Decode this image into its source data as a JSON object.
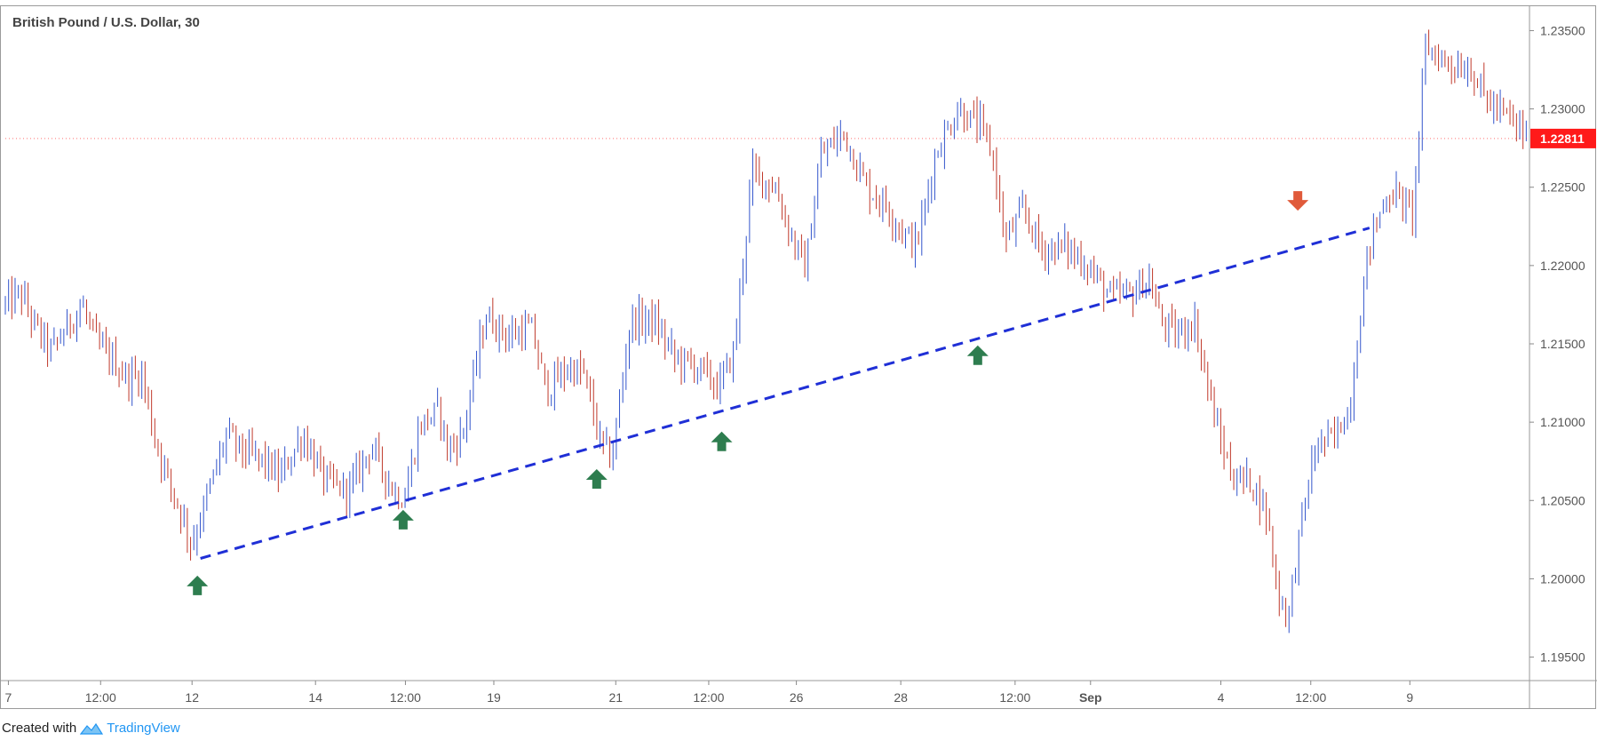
{
  "window": {
    "title": "British Pound / U.S. Dollar, 30"
  },
  "footer": {
    "created_with": "Created with",
    "brand": "TradingView"
  },
  "colors": {
    "up_candle": "#3355cc",
    "down_candle": "#c0392b",
    "trendline": "#1f2fd6",
    "up_arrow": "#2e7d4f",
    "down_arrow": "#e05a3a",
    "price_badge": "#ff1a1a",
    "grid_border": "#9a9a9a"
  },
  "chart_data": {
    "type": "candlestick",
    "symbol": "British Pound / U.S. Dollar",
    "timeframe": "30",
    "current_price": "1.22811",
    "ylim": [
      1.1935,
      1.2365
    ],
    "y_ticks": [
      "1.23500",
      "1.23000",
      "1.22500",
      "1.22000",
      "1.21500",
      "1.21000",
      "1.20500",
      "1.20000",
      "1.19500"
    ],
    "x_ticks": [
      "7",
      "12:00",
      "12",
      "14",
      "12:00",
      "19",
      "21",
      "12:00",
      "26",
      "28",
      "12:00",
      "Sep",
      "4",
      "12:00",
      "9"
    ],
    "price_path": [
      [
        0,
        1.2175
      ],
      [
        0.01,
        1.2182
      ],
      [
        0.02,
        1.216
      ],
      [
        0.03,
        1.2145
      ],
      [
        0.04,
        1.216
      ],
      [
        0.05,
        1.2175
      ],
      [
        0.06,
        1.215
      ],
      [
        0.07,
        1.214
      ],
      [
        0.08,
        1.2128
      ],
      [
        0.09,
        1.213
      ],
      [
        0.098,
        1.209
      ],
      [
        0.108,
        1.206
      ],
      [
        0.117,
        1.2038
      ],
      [
        0.122,
        1.2022
      ],
      [
        0.13,
        1.2045
      ],
      [
        0.145,
        1.2092
      ],
      [
        0.155,
        1.2082
      ],
      [
        0.17,
        1.2075
      ],
      [
        0.18,
        1.2065
      ],
      [
        0.195,
        1.2092
      ],
      [
        0.21,
        1.2062
      ],
      [
        0.225,
        1.2056
      ],
      [
        0.24,
        1.2085
      ],
      [
        0.255,
        1.2055
      ],
      [
        0.262,
        1.2052
      ],
      [
        0.272,
        1.2098
      ],
      [
        0.285,
        1.2108
      ],
      [
        0.29,
        1.2082
      ],
      [
        0.3,
        1.2092
      ],
      [
        0.315,
        1.2168
      ],
      [
        0.33,
        1.2155
      ],
      [
        0.345,
        1.216
      ],
      [
        0.355,
        1.212
      ],
      [
        0.37,
        1.2135
      ],
      [
        0.38,
        1.213
      ],
      [
        0.39,
        1.2088
      ],
      [
        0.398,
        1.2076
      ],
      [
        0.41,
        1.2165
      ],
      [
        0.425,
        1.2165
      ],
      [
        0.44,
        1.214
      ],
      [
        0.455,
        1.2135
      ],
      [
        0.468,
        1.2122
      ],
      [
        0.478,
        1.2145
      ],
      [
        0.49,
        1.226
      ],
      [
        0.505,
        1.225
      ],
      [
        0.515,
        1.222
      ],
      [
        0.525,
        1.2198
      ],
      [
        0.535,
        1.227
      ],
      [
        0.55,
        1.2285
      ],
      [
        0.565,
        1.225
      ],
      [
        0.578,
        1.2238
      ],
      [
        0.59,
        1.222
      ],
      [
        0.598,
        1.2212
      ],
      [
        0.61,
        1.227
      ],
      [
        0.625,
        1.23
      ],
      [
        0.64,
        1.2288
      ],
      [
        0.648,
        1.227
      ],
      [
        0.656,
        1.2215
      ],
      [
        0.668,
        1.2235
      ],
      [
        0.68,
        1.221
      ],
      [
        0.695,
        1.2212
      ],
      [
        0.71,
        1.22
      ],
      [
        0.725,
        1.218
      ],
      [
        0.74,
        1.2182
      ],
      [
        0.75,
        1.2192
      ],
      [
        0.758,
        1.2165
      ],
      [
        0.768,
        1.2155
      ],
      [
        0.78,
        1.2165
      ],
      [
        0.795,
        1.2095
      ],
      [
        0.805,
        1.2065
      ],
      [
        0.818,
        1.2062
      ],
      [
        0.828,
        1.204
      ],
      [
        0.836,
        1.1985
      ],
      [
        0.842,
        1.1978
      ],
      [
        0.85,
        1.2035
      ],
      [
        0.86,
        1.2085
      ],
      [
        0.872,
        1.209
      ],
      [
        0.882,
        1.211
      ],
      [
        0.894,
        1.221
      ],
      [
        0.906,
        1.2245
      ],
      [
        0.915,
        1.2245
      ],
      [
        0.923,
        1.223
      ],
      [
        0.932,
        1.234
      ],
      [
        0.945,
        1.233
      ],
      [
        0.962,
        1.2325
      ],
      [
        0.972,
        1.2305
      ],
      [
        0.985,
        1.2295
      ],
      [
        1.0,
        1.2281
      ]
    ],
    "trendline": {
      "start": [
        0.128,
        1.2013
      ],
      "end": [
        0.895,
        1.2224
      ],
      "style": "dashed"
    },
    "support_arrows": [
      {
        "x": 0.126,
        "price": 1.2002
      },
      {
        "x": 0.261,
        "price": 1.2044
      },
      {
        "x": 0.388,
        "price": 1.207
      },
      {
        "x": 0.47,
        "price": 1.2094
      },
      {
        "x": 0.638,
        "price": 1.2149
      }
    ],
    "resistance_arrows": [
      {
        "x": 0.848,
        "price": 1.2235
      }
    ]
  }
}
